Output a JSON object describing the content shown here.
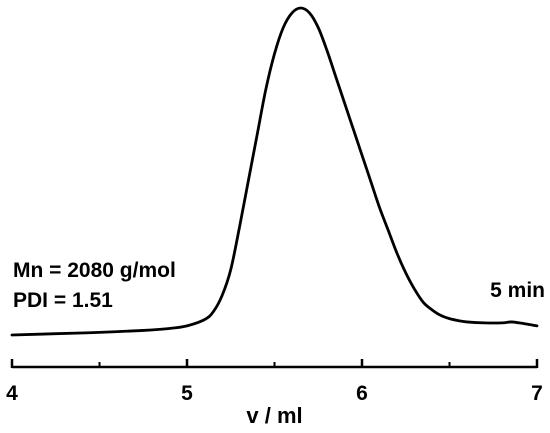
{
  "chart_data": {
    "type": "line",
    "xlabel": "v / ml",
    "ylabel": "",
    "title": "",
    "xlim": [
      4,
      7
    ],
    "x_ticks": [
      "4",
      "5",
      "6",
      "7"
    ],
    "x_minor_ticks": [
      4.5,
      5.5,
      6.5
    ],
    "yaxis_visible": false,
    "grid": false,
    "annotations": [
      {
        "text": "Mn = 2080 g/mol"
      },
      {
        "text": "PDI = 1.51"
      },
      {
        "text": "5 min"
      }
    ],
    "series": [
      {
        "color": "#000000",
        "x": [
          4.0,
          4.25,
          4.5,
          4.75,
          4.9,
          5.0,
          5.1,
          5.15,
          5.2,
          5.25,
          5.3,
          5.35,
          5.4,
          5.45,
          5.5,
          5.55,
          5.6,
          5.65,
          5.7,
          5.75,
          5.8,
          5.85,
          5.9,
          5.95,
          6.0,
          6.05,
          6.1,
          6.15,
          6.2,
          6.25,
          6.3,
          6.35,
          6.4,
          6.45,
          6.5,
          6.55,
          6.6,
          6.7,
          6.8,
          6.85,
          6.9,
          7.0
        ],
        "y": [
          0.0,
          0.004,
          0.008,
          0.014,
          0.02,
          0.028,
          0.047,
          0.071,
          0.12,
          0.2,
          0.33,
          0.47,
          0.61,
          0.75,
          0.86,
          0.94,
          0.985,
          1.0,
          0.985,
          0.94,
          0.87,
          0.79,
          0.71,
          0.63,
          0.55,
          0.47,
          0.39,
          0.32,
          0.25,
          0.19,
          0.14,
          0.1,
          0.077,
          0.06,
          0.05,
          0.044,
          0.04,
          0.037,
          0.037,
          0.04,
          0.037,
          0.028
        ]
      }
    ]
  }
}
